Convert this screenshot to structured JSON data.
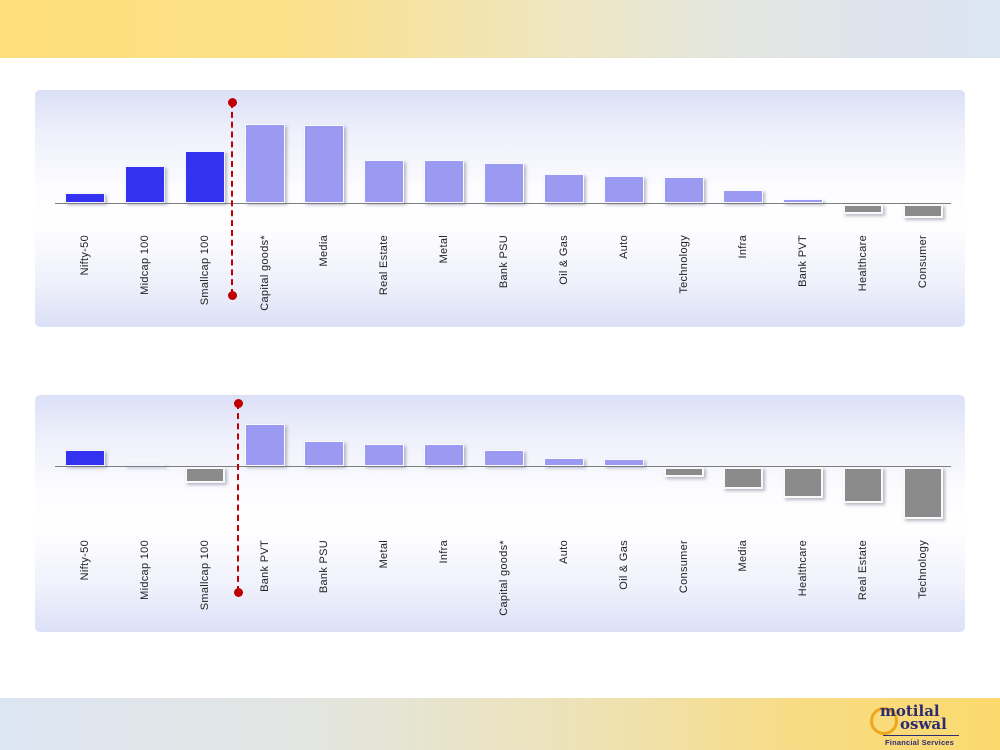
{
  "palette": {
    "blue": "#3232f0",
    "periwinkle": "#9a9af2",
    "gray": "#8b8b8b",
    "marker_red": "#c00000",
    "axis_gray": "#7f7f7f",
    "panel_lavender": "#dce0f7",
    "banner_yellow": "#ffdf7a",
    "banner_blue_gray": "#dce5f2",
    "logo_navy": "#2b2b72",
    "logo_gold": "#efa51e"
  },
  "logo": {
    "line1": "motilal",
    "line2": "oswal",
    "tagline": "Financial Services"
  },
  "chart_data": [
    {
      "type": "bar",
      "title": "",
      "xlabel": "",
      "ylabel": "",
      "axis_scale_visible": false,
      "value_note": "no numeric axis or data labels shown; values are estimated relative bar heights (px)",
      "grid": false,
      "legend": false,
      "category_labels_rotated_90": true,
      "categories": [
        "Nifty-50",
        "Midcap 100",
        "Smallcap 100",
        "Capital goods*",
        "Media",
        "Real Estate",
        "Metal",
        "Bank PSU",
        "Oil & Gas",
        "Auto",
        "Technology",
        "Infra",
        "Bank PVT",
        "Healthcare",
        "Consumer"
      ],
      "values": [
        10,
        37,
        52,
        79,
        78,
        43,
        43,
        40,
        29,
        27,
        26,
        13,
        4,
        -10,
        -14
      ],
      "colors": [
        "blue",
        "blue",
        "blue",
        "periwinkle",
        "periwinkle",
        "periwinkle",
        "periwinkle",
        "periwinkle",
        "periwinkle",
        "periwinkle",
        "periwinkle",
        "periwinkle",
        "periwinkle",
        "gray",
        "gray"
      ],
      "marker_line": {
        "style": "red dashed vertical with dot at each end",
        "between_categories": [
          "Smallcap 100",
          "Capital goods*"
        ]
      }
    },
    {
      "type": "bar",
      "title": "",
      "xlabel": "",
      "ylabel": "",
      "axis_scale_visible": false,
      "value_note": "no numeric axis or data labels shown; values are estimated relative bar heights (px)",
      "grid": false,
      "legend": false,
      "category_labels_rotated_90": true,
      "categories": [
        "Nifty-50",
        "Midcap 100",
        "Smallcap 100",
        "Bank PVT",
        "Bank PSU",
        "Metal",
        "Infra",
        "Capital goods*",
        "Auto",
        "Oil & Gas",
        "Consumer",
        "Media",
        "Healthcare",
        "Real Estate",
        "Technology"
      ],
      "values": [
        16,
        2,
        -16,
        42,
        25,
        22,
        22,
        16,
        8,
        7,
        -10,
        -22,
        -31,
        -36,
        -52
      ],
      "colors": [
        "blue",
        "blue",
        "gray",
        "periwinkle",
        "periwinkle",
        "periwinkle",
        "periwinkle",
        "periwinkle",
        "periwinkle",
        "periwinkle",
        "gray",
        "gray",
        "gray",
        "gray",
        "gray"
      ],
      "marker_line": {
        "style": "red dashed vertical with dot at each end",
        "between_categories": [
          "Smallcap 100",
          "Bank PVT"
        ]
      }
    }
  ]
}
